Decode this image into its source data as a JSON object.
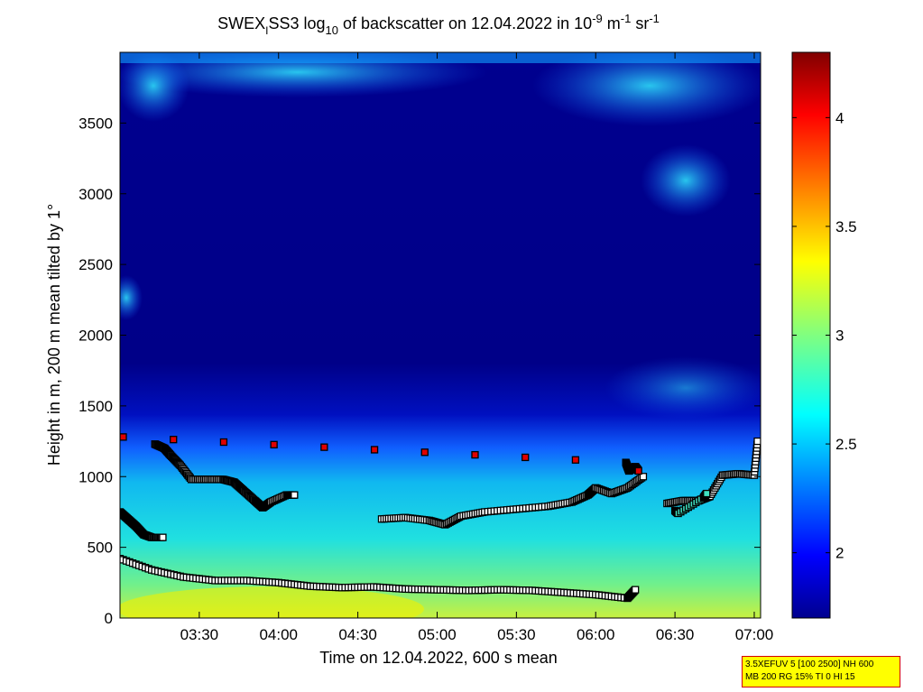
{
  "chart_data": {
    "type": "heatmap",
    "title": {
      "prefix": "SWEX",
      "sub_i": "I",
      "mid": "SS3 log",
      "sub_10": "10",
      "mid2": " of backscatter on 12.04.2022 in 10",
      "sup1": "-9",
      "mid3": " m",
      "sup2": "-1",
      "mid4": " sr",
      "sup3": "-1"
    },
    "xlabel": "Time on 12.04.2022, 600 s mean",
    "ylabel": "Height in m, 200 m mean tilted by 1°",
    "x_ticks": [
      "03:30",
      "04:00",
      "04:30",
      "05:00",
      "05:30",
      "06:00",
      "06:30",
      "07:00"
    ],
    "x_tick_values": [
      3.5,
      4.0,
      4.5,
      5.0,
      5.5,
      6.0,
      6.5,
      7.0
    ],
    "xlim": [
      3.0,
      7.04
    ],
    "ylim": [
      0,
      4000
    ],
    "y_ticks": [
      "0",
      "500",
      "1000",
      "1500",
      "2000",
      "2500",
      "3000",
      "3500"
    ],
    "y_tick_values": [
      0,
      500,
      1000,
      1500,
      2000,
      2500,
      3000,
      3500
    ],
    "colorbar": {
      "range": [
        1.7,
        4.3
      ],
      "ticks": [
        "2",
        "2.5",
        "3",
        "3.5",
        "4"
      ],
      "tick_values": [
        2,
        2.5,
        3,
        3.5,
        4
      ],
      "colormap": "jet"
    },
    "series": [
      {
        "marker": "square-black",
        "x": [
          3.0,
          3.2,
          3.4,
          3.6,
          3.8,
          4.0,
          4.2,
          4.4,
          4.6,
          4.8,
          5.0,
          5.2,
          5.4,
          5.6,
          5.8,
          6.0,
          6.2,
          6.25
        ],
        "y": [
          420,
          340,
          290,
          265,
          265,
          250,
          225,
          215,
          220,
          205,
          200,
          195,
          200,
          195,
          180,
          165,
          140,
          200
        ]
      },
      {
        "marker": "square-black",
        "x": [
          3.0,
          3.05,
          3.1,
          3.15,
          3.2,
          3.27
        ],
        "y": [
          750,
          700,
          650,
          590,
          570,
          570
        ]
      },
      {
        "marker": "square-black",
        "x": [
          3.22,
          3.28,
          3.32,
          3.38,
          3.45,
          3.55,
          3.65,
          3.72,
          3.78,
          3.85,
          3.9,
          3.95,
          4.05,
          4.1
        ],
        "y": [
          1230,
          1200,
          1150,
          1080,
          980,
          980,
          980,
          960,
          900,
          830,
          780,
          820,
          870,
          870
        ]
      },
      {
        "marker": "square-black",
        "x": [
          4.65,
          4.8,
          4.95,
          5.05,
          5.15,
          5.3,
          5.5,
          5.7,
          5.85,
          5.95,
          6.0,
          6.1,
          6.2,
          6.3
        ],
        "y": [
          700,
          710,
          690,
          660,
          720,
          750,
          770,
          790,
          820,
          870,
          920,
          880,
          920,
          1000
        ]
      },
      {
        "marker": "square-black",
        "x": [
          6.45,
          6.55,
          6.65,
          6.72,
          6.8,
          6.9,
          7.0,
          7.02
        ],
        "y": [
          810,
          830,
          830,
          860,
          1010,
          1020,
          1010,
          1250
        ]
      },
      {
        "marker": "square-red",
        "x": [
          3.02,
          6.19,
          6.21,
          6.23,
          6.25,
          6.27
        ],
        "y": [
          1280,
          1100,
          1040,
          1060,
          1070,
          1040
        ]
      },
      {
        "marker": "square-cyan",
        "x": [
          6.5,
          6.52,
          6.68,
          6.7
        ],
        "y": [
          760,
          740,
          850,
          880
        ]
      }
    ]
  },
  "info_box": {
    "line1": "3.5XEFUV 5 [100 2500] NH 600",
    "line2": "MB 200 RG 15% TI 0 HI 15"
  },
  "colors": {
    "background": "#ffffff",
    "info_box_fill": "#ffff00",
    "info_box_border": "#d40000",
    "colormap_stops": [
      "#00008f",
      "#0000ff",
      "#0080ff",
      "#00ffff",
      "#80ff80",
      "#ffff00",
      "#ff8000",
      "#ff0000",
      "#800000"
    ]
  }
}
